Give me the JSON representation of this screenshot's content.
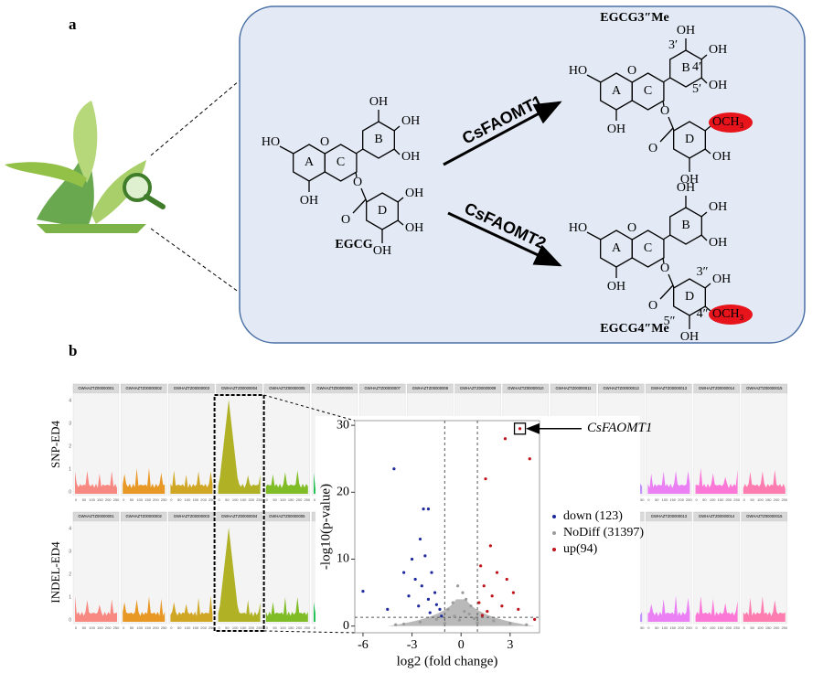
{
  "panel_a": {
    "label": "a",
    "reactions": [
      "CsFAOMT1",
      "CsFAOMT2"
    ],
    "molecules": [
      {
        "name": "EGCG",
        "rings": [
          "A",
          "C",
          "B",
          "D"
        ],
        "atoms": [
          "HO",
          "OH",
          "O",
          "O",
          "O",
          "OH",
          "OH",
          "OH",
          "OH",
          "OH",
          "OH"
        ]
      },
      {
        "name": "EGCG3″Me",
        "rings": [
          "A",
          "C",
          "B",
          "D"
        ],
        "atoms": [
          "HO",
          "OH",
          "O",
          "O",
          "O",
          "OH",
          "OH",
          "OH",
          "OCH₃",
          "OH",
          "OH"
        ],
        "positions": [
          "3′",
          "4′",
          "5′"
        ]
      },
      {
        "name": "EGCG4″Me",
        "rings": [
          "A",
          "C",
          "B",
          "D"
        ],
        "atoms": [
          "HO",
          "OH",
          "O",
          "O",
          "O",
          "OH",
          "OH",
          "OH",
          "OH",
          "OCH₃",
          "OH"
        ],
        "positions": [
          "3″",
          "4″",
          "5″"
        ]
      }
    ]
  },
  "panel_b": {
    "label": "b",
    "manhattan": {
      "rows": [
        "SNP-ED4",
        "INDEL-ED4"
      ],
      "chromosomes": [
        "GWHAZTZ00000001",
        "GWHAZTZ00000002",
        "GWHAZTZ00000003",
        "GWHAZTZ00000004",
        "GWHAZTZ00000005",
        "GWHAZTZ00000006",
        "GWHAZTZ00000007",
        "GWHAZTZ00000008",
        "GWHAZTZ00000009",
        "GWHAZTZ00000010",
        "GWHAZTZ00000011",
        "GWHAZTZ00000012",
        "GWHAZTZ00000013",
        "GWHAZTZ00000014",
        "GWHAZTZ00000015"
      ],
      "colors": [
        "#f8766d",
        "#e58700",
        "#c99800",
        "#a3a500",
        "#6bb100",
        "#00ba38",
        "#00bf7d",
        "#00c0af",
        "#00bcd8",
        "#00b0f6",
        "#619cff",
        "#b983ff",
        "#e76bf3",
        "#fd61d1",
        "#ff67a4"
      ],
      "yticks": [
        0,
        1,
        2,
        3,
        4
      ],
      "xticks": [
        0,
        50,
        100,
        150,
        200,
        250
      ]
    }
  },
  "chart_data": {
    "type": "scatter",
    "xlabel": "log2 (fold change)",
    "ylabel": "-log10(p-value)",
    "xlim": [
      -6.5,
      4.8
    ],
    "ylim": [
      -1,
      30.7
    ],
    "xticks": [
      -6,
      -3,
      0,
      3
    ],
    "yticks": [
      0,
      10,
      20,
      30
    ],
    "cutoffs": {
      "x": [
        -1,
        1
      ],
      "y": 1.3
    },
    "annotation": "CsFAOMT1",
    "series": [
      {
        "name": "down (123)",
        "color": "#1f2a9e",
        "x": [
          -6,
          -4.1,
          -2.3,
          -2,
          -2.5,
          -3,
          -2.2,
          -3.5,
          -1.8,
          -2.8,
          -2.4,
          -1.6,
          -3.2,
          -2,
          -1.5,
          -2.6,
          -1.3,
          -1.9,
          -4.5,
          -1.2
        ],
        "y": [
          5.2,
          23.5,
          17.5,
          17.5,
          13,
          10,
          10.5,
          8,
          8,
          7,
          6,
          5,
          4.5,
          4,
          3.2,
          3,
          2.5,
          2,
          2.5,
          1.5
        ]
      },
      {
        "name": "NoDiff (31397)",
        "color": "#9a9a9a",
        "x": [
          -0.2,
          0.1,
          0.3,
          -0.5,
          0.6,
          -0.8,
          0.2,
          -1.5,
          2,
          -2.5,
          -3.5,
          3,
          -0.4,
          0.5,
          -1,
          1,
          -4,
          4,
          -0.1,
          0.8
        ],
        "y": [
          6,
          5,
          4,
          3.5,
          3,
          2.5,
          2.2,
          1,
          0.8,
          0.6,
          0.3,
          0.4,
          1.5,
          1.8,
          0.4,
          0.5,
          0.2,
          0.2,
          0.9,
          1.1
        ]
      },
      {
        "name": "up(94)",
        "color": "#c0141b",
        "x": [
          3.6,
          4.2,
          2.7,
          1.5,
          1.8,
          1.2,
          2.2,
          2.8,
          1.4,
          3.2,
          1.9,
          1.1,
          2.5,
          1.6,
          3.5,
          1.3,
          4.5
        ],
        "y": [
          29.5,
          25,
          28,
          22,
          12,
          9,
          8,
          7,
          6,
          5,
          4.5,
          3.5,
          3,
          2.2,
          2.5,
          1.6,
          1
        ]
      }
    ]
  }
}
